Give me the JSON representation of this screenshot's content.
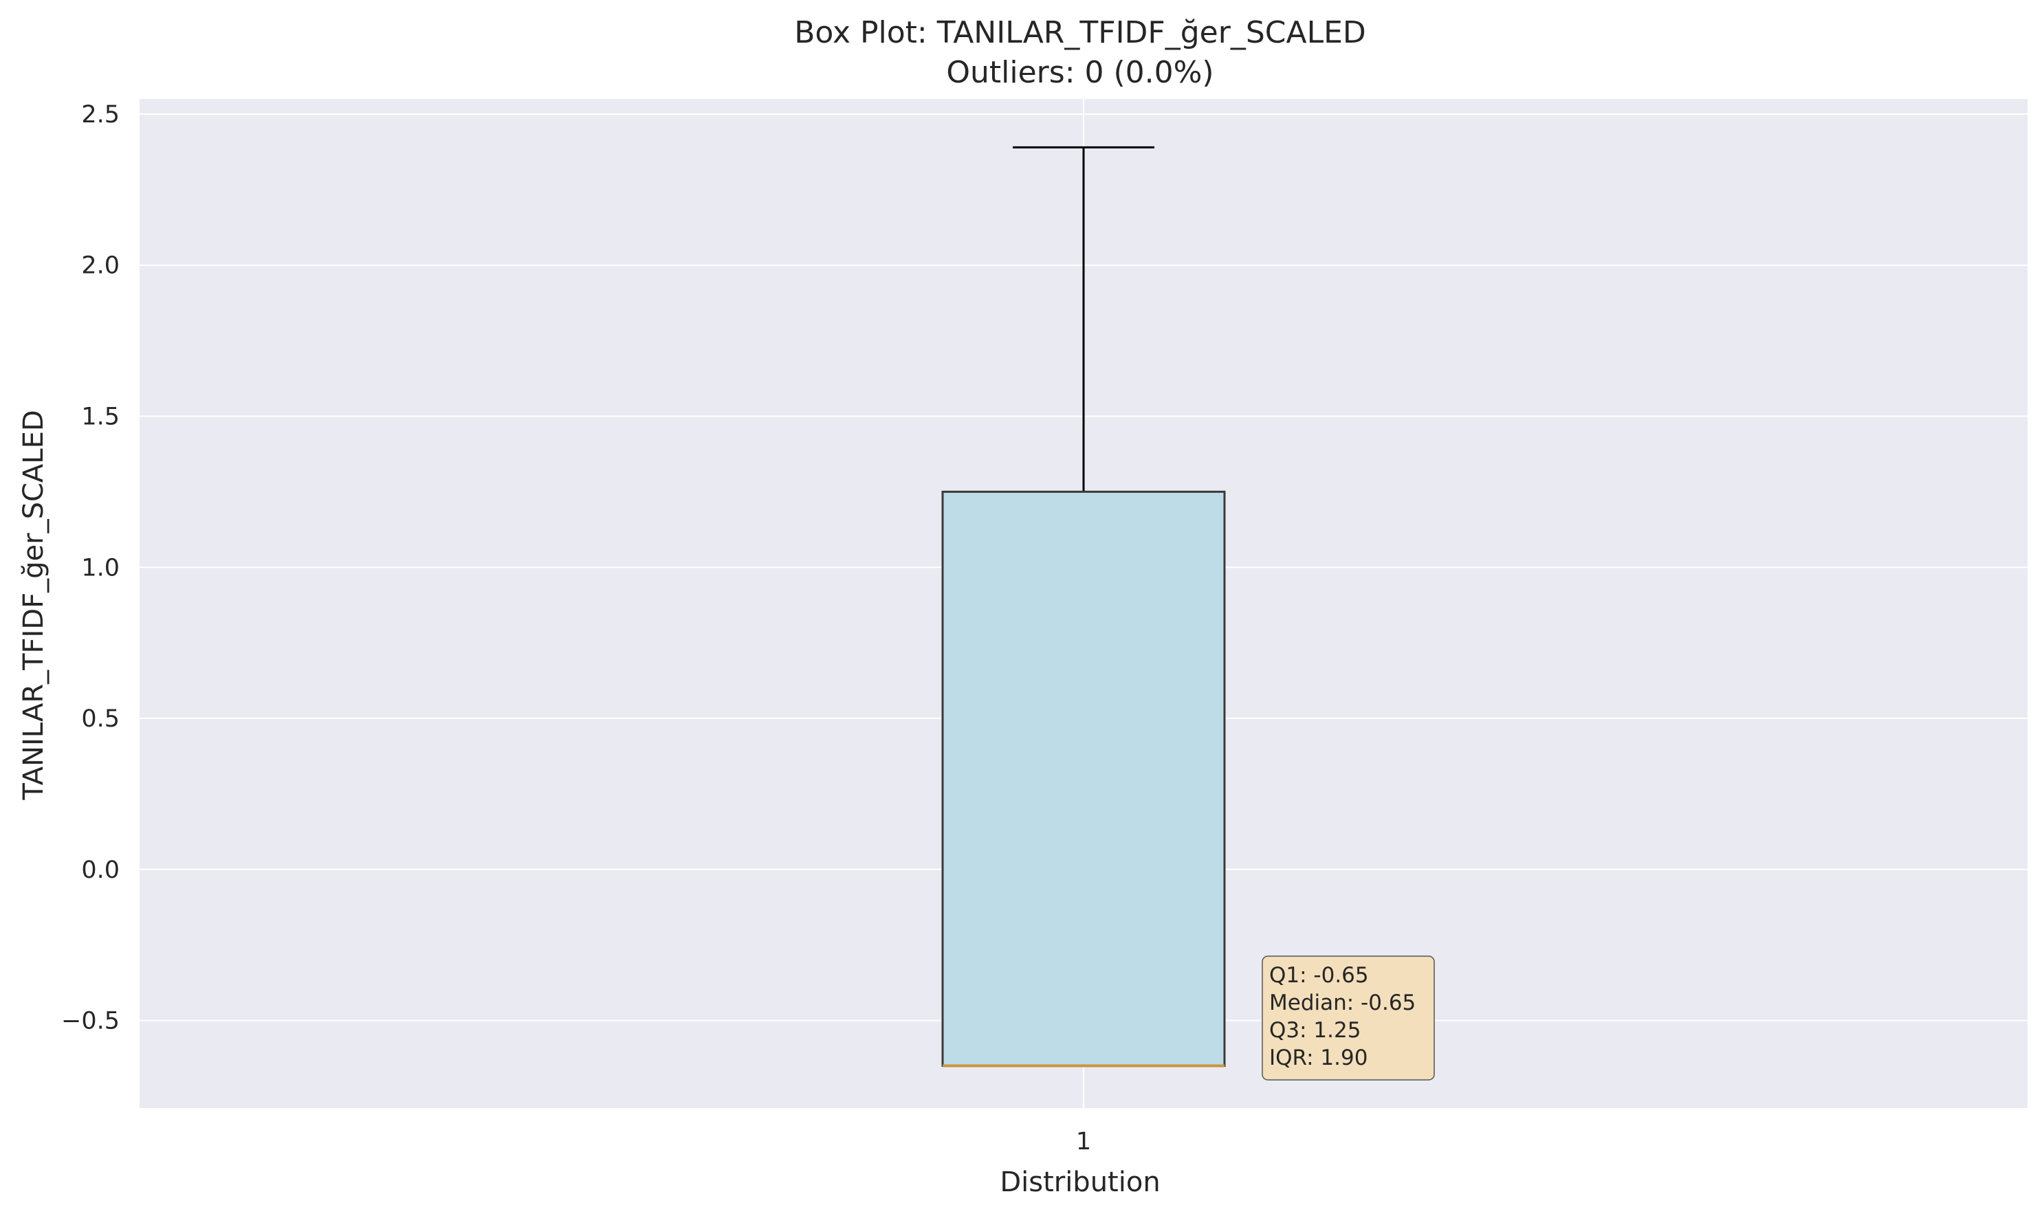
{
  "chart_data": {
    "type": "box",
    "title": "Box Plot: TANILAR_TFIDF_ğer_SCALED",
    "subtitle": "Outliers: 0 (0.0%)",
    "xlabel": "Distribution",
    "ylabel": "TANILAR_TFIDF_ğer_SCALED",
    "categories": [
      "1"
    ],
    "ylim": [
      -0.79,
      2.55
    ],
    "yticks": [
      -0.5,
      0.0,
      0.5,
      1.0,
      1.5,
      2.0,
      2.5
    ],
    "ytick_labels": [
      "−0.5",
      "0.0",
      "0.5",
      "1.0",
      "1.5",
      "2.0",
      "2.5"
    ],
    "grid": true,
    "box": {
      "whisker_low": -0.65,
      "q1": -0.65,
      "median": -0.65,
      "q3": 1.25,
      "whisker_high": 2.39,
      "outliers": []
    },
    "stats_lines": [
      "Q1: -0.65",
      "Median: -0.65",
      "Q3: 1.25",
      "IQR: 1.90"
    ],
    "colors": {
      "plot_bg": "#eaeaf2",
      "grid": "#ffffff",
      "box_fill": "#bddce7",
      "box_edge": "#3a3a3a",
      "median": "#c8963e",
      "whisker": "#000000",
      "stats_box_fill": "#f4dfbc",
      "stats_box_edge": "#555555"
    }
  }
}
